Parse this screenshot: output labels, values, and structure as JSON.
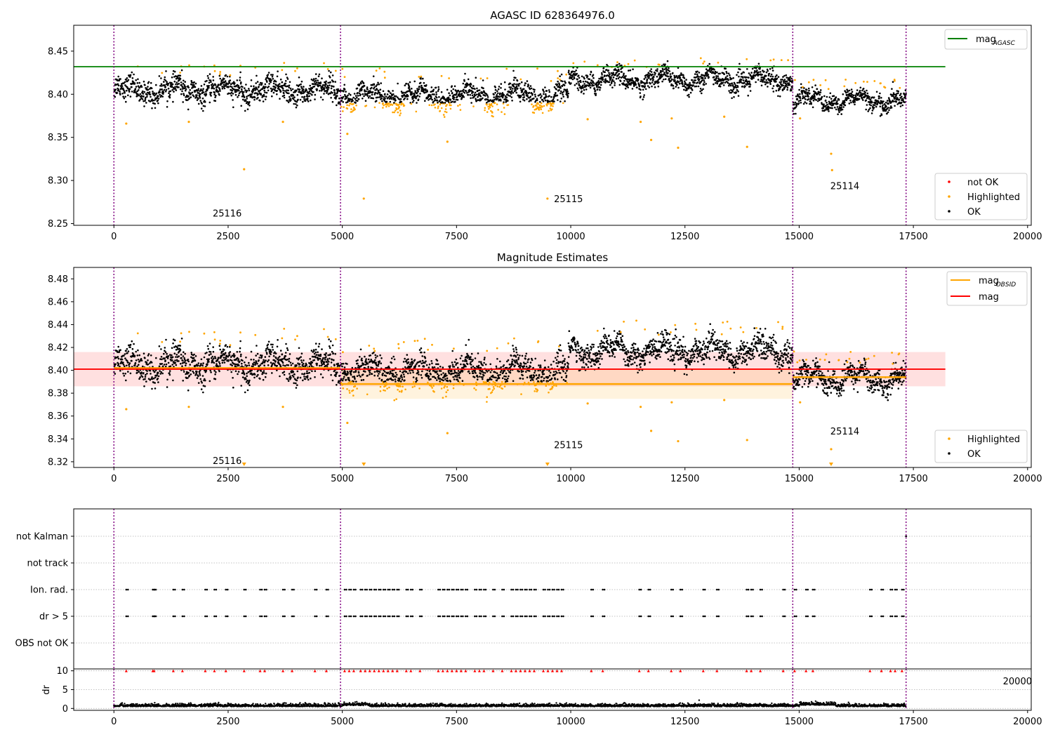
{
  "figure": {
    "panel1_title": "AGASC ID 628364976.0",
    "panel2_title": "Magnitude Estimates"
  },
  "colors": {
    "ok": "#000000",
    "highlighted": "#ffa500",
    "not_ok": "#ff0000",
    "agasc_line": "#008000",
    "mag_line": "#ff0000",
    "obsid_line": "#ffa500",
    "obs_boundary": "#800080"
  },
  "chart_data": [
    {
      "type": "scatter",
      "title": "AGASC ID 628364976.0",
      "xlim": [
        -880,
        20080
      ],
      "ylim": [
        8.248,
        8.48
      ],
      "xticks": [
        0,
        2500,
        5000,
        7500,
        10000,
        12500,
        15000,
        17500,
        20000
      ],
      "yticks": [
        8.25,
        8.3,
        8.35,
        8.4,
        8.45
      ],
      "agasc_mag": 8.432,
      "agasc_line_x": [
        -880,
        18200
      ],
      "obs_boundaries": [
        0,
        4960,
        14860,
        17340
      ],
      "obs_labels": [
        {
          "text": "25116",
          "x": 2480,
          "y": 8.258
        },
        {
          "text": "25115",
          "x": 9950,
          "y": 8.275
        },
        {
          "text": "25114",
          "x": 16000,
          "y": 8.29
        }
      ],
      "segments": [
        {
          "x0": 0,
          "x1": 4960,
          "ok_center": 8.405,
          "ok_spread": 0.012,
          "highlight_below": null
        },
        {
          "x0": 4960,
          "x1": 9950,
          "ok_center": 8.398,
          "ok_spread": 0.012,
          "highlight_below": 8.39
        },
        {
          "x0": 9950,
          "x1": 14860,
          "ok_center": 8.417,
          "ok_spread": 0.01,
          "highlight_below": null
        },
        {
          "x0": 14860,
          "x1": 17340,
          "ok_center": 8.393,
          "ok_spread": 0.009,
          "highlight_below": null
        }
      ],
      "outliers": [
        [
          270,
          8.366
        ],
        [
          1640,
          8.368
        ],
        [
          2850,
          8.313
        ],
        [
          3700,
          8.368
        ],
        [
          5110,
          8.354
        ],
        [
          5470,
          8.279
        ],
        [
          7300,
          8.345
        ],
        [
          9490,
          8.279
        ],
        [
          10370,
          8.371
        ],
        [
          11530,
          8.368
        ],
        [
          11760,
          8.347
        ],
        [
          12210,
          8.372
        ],
        [
          12350,
          8.338
        ],
        [
          13360,
          8.374
        ],
        [
          13860,
          8.339
        ],
        [
          15700,
          8.331
        ],
        [
          15720,
          8.312
        ],
        [
          15020,
          8.372
        ]
      ],
      "legend_upper": [
        {
          "label": "mag",
          "subscript": "AGASC"
        }
      ],
      "legend_lower": [
        {
          "label": "not OK",
          "color": "#ff0000"
        },
        {
          "label": "Highlighted",
          "color": "#ffa500"
        },
        {
          "label": "OK",
          "color": "#000000"
        }
      ]
    },
    {
      "type": "scatter",
      "title": "Magnitude Estimates",
      "xlim": [
        -880,
        20080
      ],
      "ylim": [
        8.315,
        8.49
      ],
      "xticks": [
        0,
        2500,
        5000,
        7500,
        10000,
        12500,
        15000,
        17500,
        20000
      ],
      "yticks": [
        8.32,
        8.34,
        8.36,
        8.38,
        8.4,
        8.42,
        8.44,
        8.46,
        8.48
      ],
      "mag": 8.401,
      "mag_band": [
        8.386,
        8.416
      ],
      "mag_line_x": [
        -880,
        18200
      ],
      "obsid_mags": [
        {
          "x0": 0,
          "x1": 4960,
          "mag": 8.402
        },
        {
          "x0": 4960,
          "x1": 14860,
          "mag": 8.388,
          "band": [
            8.375,
            8.401
          ]
        },
        {
          "x0": 14860,
          "x1": 17340,
          "mag": 8.394
        }
      ],
      "obs_boundaries": [
        0,
        4960,
        14860,
        17340
      ],
      "obs_labels": [
        {
          "text": "25116",
          "x": 2480,
          "y": 8.318
        },
        {
          "text": "25115",
          "x": 9950,
          "y": 8.332
        },
        {
          "text": "25114",
          "x": 16000,
          "y": 8.344
        }
      ],
      "offscale_markers": [
        2850,
        5470,
        9490,
        15700
      ],
      "legend_upper": [
        {
          "label": "mag",
          "subscript": "OBSID",
          "color": "#ffa500"
        },
        {
          "label": "mag",
          "subscript": "",
          "color": "#ff0000"
        }
      ],
      "legend_lower": [
        {
          "label": "Highlighted",
          "color": "#ffa500"
        },
        {
          "label": "OK",
          "color": "#000000"
        }
      ]
    },
    {
      "type": "scatter",
      "categories": [
        "not Kalman",
        "not track",
        "Ion. rad.",
        "dr > 5",
        "OBS not OK"
      ],
      "flag_x": [
        270,
        850,
        880,
        1300,
        1500,
        2000,
        2200,
        2450,
        2850,
        3200,
        3300,
        3700,
        3900,
        4400,
        4650,
        5050,
        5150,
        5250,
        5400,
        5500,
        5600,
        5700,
        5800,
        5900,
        6000,
        6100,
        6200,
        6400,
        6500,
        6700,
        7100,
        7200,
        7300,
        7400,
        7500,
        7600,
        7700,
        7900,
        8000,
        8100,
        8300,
        8500,
        8700,
        8800,
        8900,
        9000,
        9100,
        9200,
        9400,
        9500,
        9600,
        9700,
        9800,
        10450,
        10700,
        11500,
        11700,
        12200,
        12400,
        12900,
        13200,
        13850,
        13950,
        14150,
        14650,
        14900,
        15150,
        15300,
        16550,
        16800,
        17000,
        17100,
        17250
      ],
      "not_kalman_x": [
        17340
      ]
    },
    {
      "type": "scatter",
      "ylabel": "dr",
      "xlim": [
        -880,
        20080
      ],
      "ylim": [
        -0.5,
        10.5
      ],
      "yticks": [
        0,
        5,
        10
      ],
      "xticks": [
        0,
        2500,
        5000,
        7500,
        10000,
        12500,
        15000,
        17500,
        20000
      ],
      "dr_center": 0.5,
      "clipped_value": 10,
      "offgrid_tick_label": "20000"
    }
  ]
}
